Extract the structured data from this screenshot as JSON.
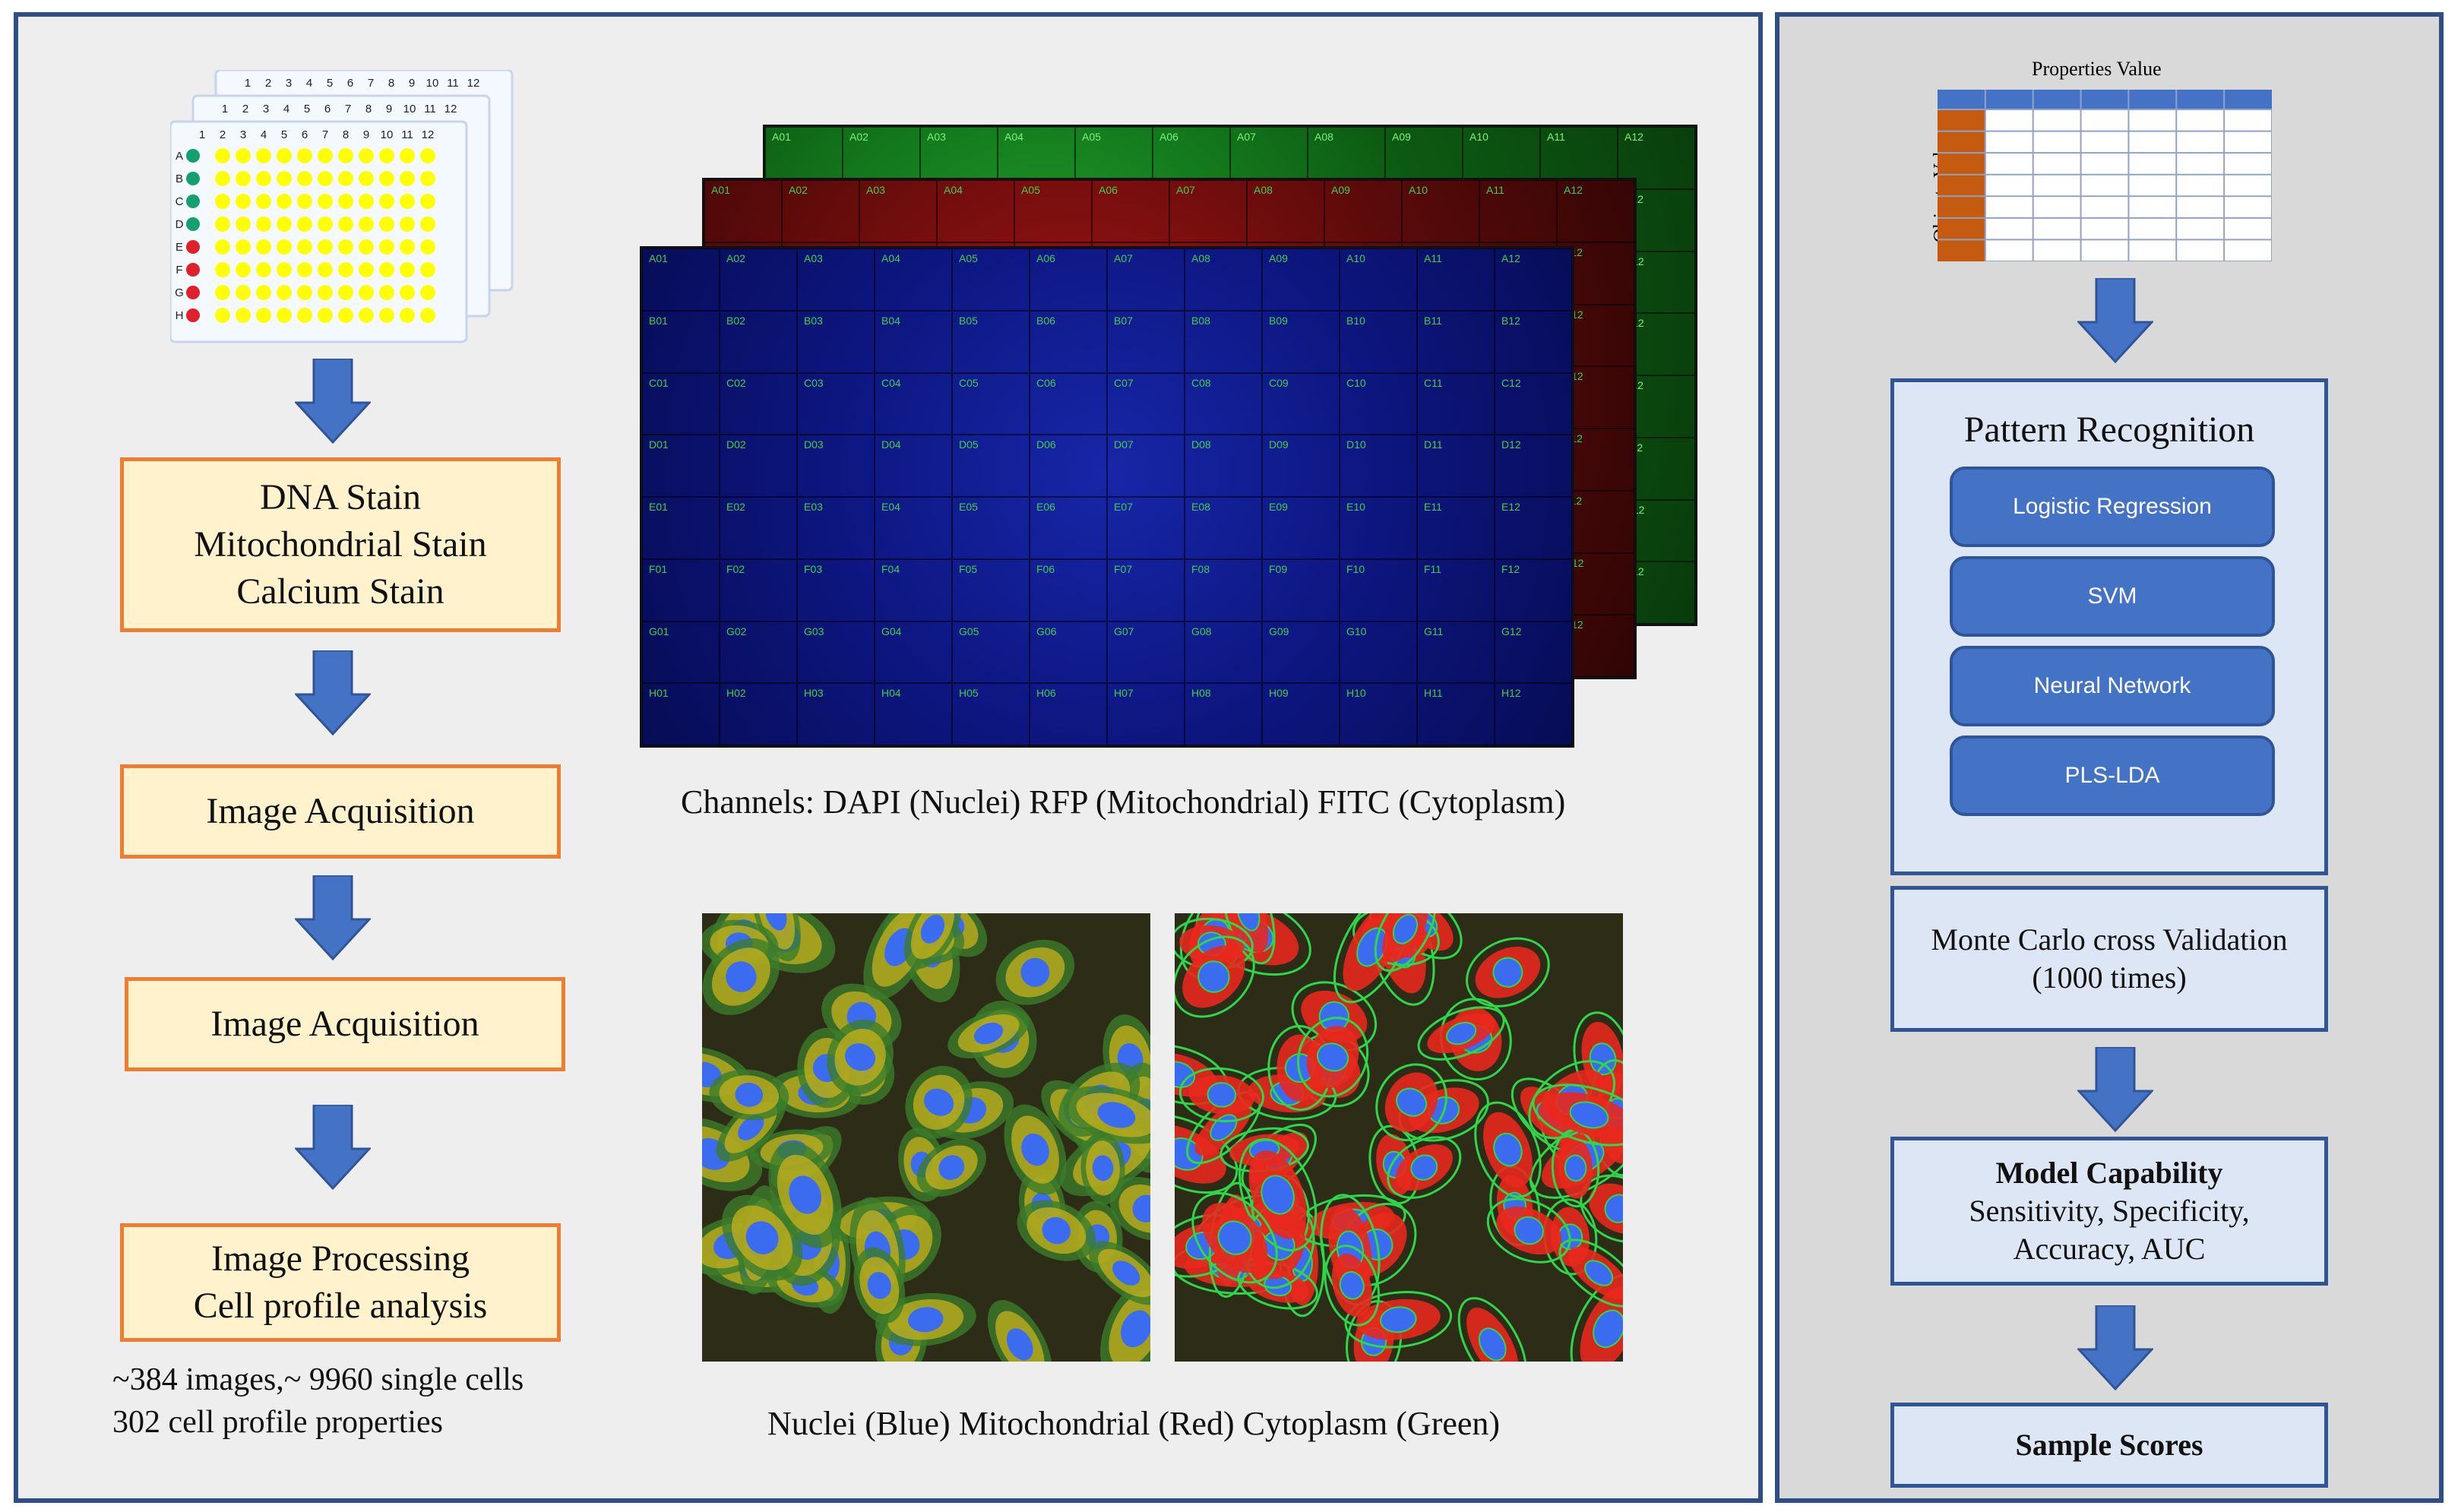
{
  "left": {
    "steps": [
      [
        "DNA Stain",
        "Mitochondrial Stain",
        "Calcium Stain"
      ],
      [
        "Image Acquisition"
      ],
      [
        "Image Acquisition"
      ],
      [
        "Image Processing",
        "Cell profile analysis"
      ]
    ],
    "stats": [
      "~384 images,~ 9960 single cells",
      "302 cell profile properties"
    ],
    "plate": {
      "columns": [
        "1",
        "2",
        "3",
        "4",
        "5",
        "6",
        "7",
        "8",
        "9",
        "10",
        "11",
        "12"
      ],
      "rows": [
        "A",
        "B",
        "C",
        "D",
        "E",
        "F",
        "G",
        "H"
      ],
      "row_marker_colors": [
        "#14a06e",
        "#14a06e",
        "#14a06e",
        "#14a06e",
        "#e0202a",
        "#e0202a",
        "#e0202a",
        "#e0202a"
      ],
      "well_color": "#ffff00"
    },
    "channels_caption": "Channels: DAPI (Nuclei) RFP (Mitochondrial) FITC (Cytoplasm)",
    "cells_caption": "Nuclei (Blue) Mitochondrial (Red) Cytoplasm (Green)",
    "channel_colors": {
      "fitc": "#118a1a",
      "rfp": "#7a0d0d",
      "dapi": "#0c1a8a"
    },
    "well_labels": {
      "rows": [
        "A",
        "B",
        "C",
        "D",
        "E",
        "F",
        "G",
        "H"
      ],
      "cols": [
        "01",
        "02",
        "03",
        "04",
        "05",
        "06",
        "07",
        "08",
        "09",
        "10",
        "11",
        "12"
      ]
    }
  },
  "right": {
    "table": {
      "top_label": "Properties  Value",
      "side_label": "Objects  Value",
      "header_color": "#4472c4",
      "side_color": "#c55a11"
    },
    "pattern": {
      "title": "Pattern Recognition",
      "methods": [
        "Logistic Regression",
        "SVM",
        "Neural Network",
        "PLS-LDA"
      ]
    },
    "validation": [
      "Monte Carlo cross Validation",
      "(1000 times)"
    ],
    "capability": {
      "title": "Model Capability",
      "lines": [
        "Sensitivity,  Specificity,",
        "Accuracy, AUC"
      ]
    },
    "scores": "Sample Scores"
  },
  "arrow_color": "#4472c4"
}
